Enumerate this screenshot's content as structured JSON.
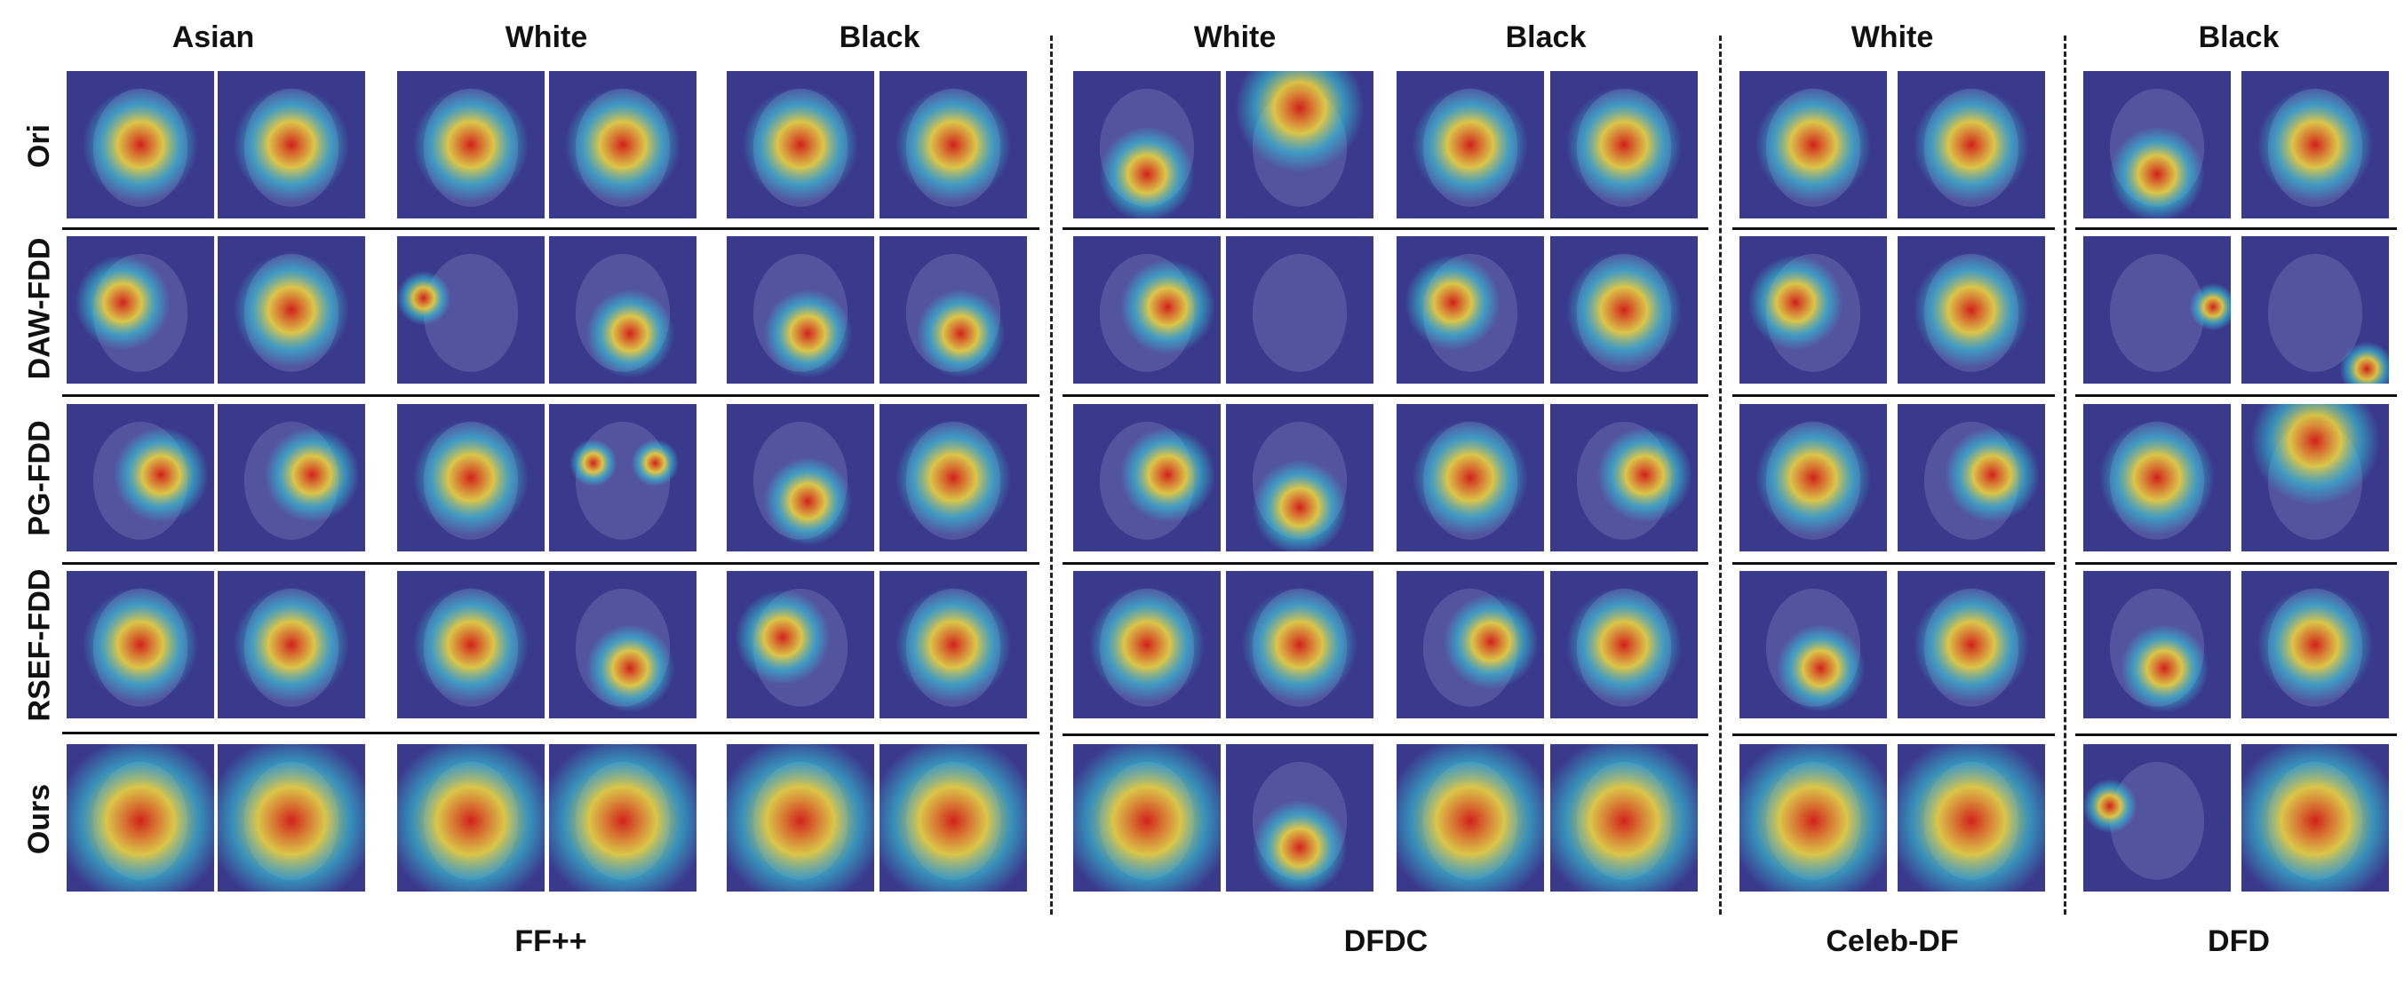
{
  "colors": {
    "face_bg": "#3a3a8c",
    "hot": "#d81e14",
    "warm": "#f3d93a",
    "cool": "#35c7d9"
  },
  "datasets": [
    "FF++",
    "DFDC",
    "Celeb-DF",
    "DFD"
  ],
  "groups": [
    "Asian",
    "White",
    "Black",
    "White",
    "Black",
    "White",
    "Black"
  ],
  "rows": [
    "Ori",
    "DAW-FDD",
    "PG-FDD",
    "RSEF-FDD",
    "Ours"
  ],
  "cells": [
    [
      {
        "icon": "gradcam-heatmap",
        "type": "center"
      },
      {
        "icon": "gradcam-heatmap",
        "type": "center"
      },
      {
        "icon": "gradcam-heatmap",
        "type": "center"
      },
      {
        "icon": "gradcam-heatmap",
        "type": "center"
      },
      {
        "icon": "gradcam-heatmap",
        "type": "center"
      },
      {
        "icon": "gradcam-heatmap",
        "type": "center"
      },
      {
        "icon": "gradcam-heatmap",
        "type": "mouth"
      },
      {
        "icon": "gradcam-heatmap",
        "type": "top"
      },
      {
        "icon": "gradcam-heatmap",
        "type": "center"
      },
      {
        "icon": "gradcam-heatmap",
        "type": "center"
      },
      {
        "icon": "gradcam-heatmap",
        "type": "center"
      },
      {
        "icon": "gradcam-heatmap",
        "type": "center"
      },
      {
        "icon": "gradcam-heatmap",
        "type": "mouth"
      },
      {
        "icon": "gradcam-heatmap",
        "type": "center"
      }
    ],
    [
      {
        "icon": "gradcam-heatmap",
        "type": "left"
      },
      {
        "icon": "gradcam-heatmap",
        "type": "center"
      },
      {
        "icon": "gradcam-heatmap",
        "type": "spot-left"
      },
      {
        "icon": "gradcam-heatmap",
        "type": "low"
      },
      {
        "icon": "gradcam-heatmap",
        "type": "low"
      },
      {
        "icon": "gradcam-heatmap",
        "type": "low"
      },
      {
        "icon": "gradcam-heatmap",
        "type": "right"
      },
      {
        "icon": "gradcam-heatmap",
        "type": "none"
      },
      {
        "icon": "gradcam-heatmap",
        "type": "left"
      },
      {
        "icon": "gradcam-heatmap",
        "type": "center"
      },
      {
        "icon": "gradcam-heatmap",
        "type": "left"
      },
      {
        "icon": "gradcam-heatmap",
        "type": "center"
      },
      {
        "icon": "gradcam-heatmap",
        "type": "spot-right"
      },
      {
        "icon": "gradcam-heatmap",
        "type": "corner"
      }
    ],
    [
      {
        "icon": "gradcam-heatmap",
        "type": "right"
      },
      {
        "icon": "gradcam-heatmap",
        "type": "right"
      },
      {
        "icon": "gradcam-heatmap",
        "type": "center"
      },
      {
        "icon": "gradcam-heatmap",
        "type": "eyes"
      },
      {
        "icon": "gradcam-heatmap",
        "type": "low"
      },
      {
        "icon": "gradcam-heatmap",
        "type": "center"
      },
      {
        "icon": "gradcam-heatmap",
        "type": "right"
      },
      {
        "icon": "gradcam-heatmap",
        "type": "mouth"
      },
      {
        "icon": "gradcam-heatmap",
        "type": "center"
      },
      {
        "icon": "gradcam-heatmap",
        "type": "right"
      },
      {
        "icon": "gradcam-heatmap",
        "type": "center"
      },
      {
        "icon": "gradcam-heatmap",
        "type": "right"
      },
      {
        "icon": "gradcam-heatmap",
        "type": "center"
      },
      {
        "icon": "gradcam-heatmap",
        "type": "top"
      }
    ],
    [
      {
        "icon": "gradcam-heatmap",
        "type": "center"
      },
      {
        "icon": "gradcam-heatmap",
        "type": "center"
      },
      {
        "icon": "gradcam-heatmap",
        "type": "center"
      },
      {
        "icon": "gradcam-heatmap",
        "type": "low"
      },
      {
        "icon": "gradcam-heatmap",
        "type": "left"
      },
      {
        "icon": "gradcam-heatmap",
        "type": "center"
      },
      {
        "icon": "gradcam-heatmap",
        "type": "center"
      },
      {
        "icon": "gradcam-heatmap",
        "type": "center"
      },
      {
        "icon": "gradcam-heatmap",
        "type": "right"
      },
      {
        "icon": "gradcam-heatmap",
        "type": "center"
      },
      {
        "icon": "gradcam-heatmap",
        "type": "low"
      },
      {
        "icon": "gradcam-heatmap",
        "type": "center"
      },
      {
        "icon": "gradcam-heatmap",
        "type": "low"
      },
      {
        "icon": "gradcam-heatmap",
        "type": "center"
      }
    ],
    [
      {
        "icon": "gradcam-heatmap",
        "type": "full"
      },
      {
        "icon": "gradcam-heatmap",
        "type": "full"
      },
      {
        "icon": "gradcam-heatmap",
        "type": "full"
      },
      {
        "icon": "gradcam-heatmap",
        "type": "full"
      },
      {
        "icon": "gradcam-heatmap",
        "type": "full"
      },
      {
        "icon": "gradcam-heatmap",
        "type": "full"
      },
      {
        "icon": "gradcam-heatmap",
        "type": "full"
      },
      {
        "icon": "gradcam-heatmap",
        "type": "mouth"
      },
      {
        "icon": "gradcam-heatmap",
        "type": "full"
      },
      {
        "icon": "gradcam-heatmap",
        "type": "full"
      },
      {
        "icon": "gradcam-heatmap",
        "type": "full"
      },
      {
        "icon": "gradcam-heatmap",
        "type": "full"
      },
      {
        "icon": "gradcam-heatmap",
        "type": "spot-left"
      },
      {
        "icon": "gradcam-heatmap",
        "type": "full"
      }
    ]
  ]
}
